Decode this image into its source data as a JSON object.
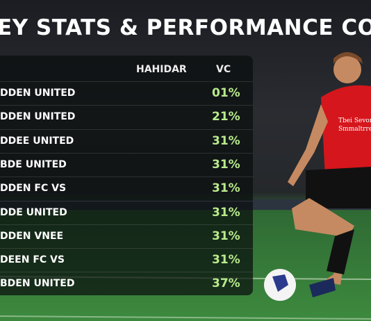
{
  "header": {
    "title": "EY STATS & PERFORMANCE COMPARISO"
  },
  "table": {
    "columns": [
      "HAHIDAR",
      "VC"
    ],
    "rows": [
      [
        "DDEN UNITED",
        "01%"
      ],
      [
        "DDEN UNITED",
        "21%"
      ],
      [
        "DDEE UNITED",
        "31%"
      ],
      [
        "BDE UNITED",
        "31%"
      ],
      [
        "DDEN FC VS",
        "31%"
      ],
      [
        "DDE UNITED",
        "31%"
      ],
      [
        "DDEN VNEE",
        "31%"
      ],
      [
        "DEEN FC VS",
        "31%"
      ],
      [
        "BDEN UNITED",
        "37%"
      ]
    ]
  },
  "shirt_text": [
    "Tbei Sevon",
    "Smmaltrre"
  ]
}
